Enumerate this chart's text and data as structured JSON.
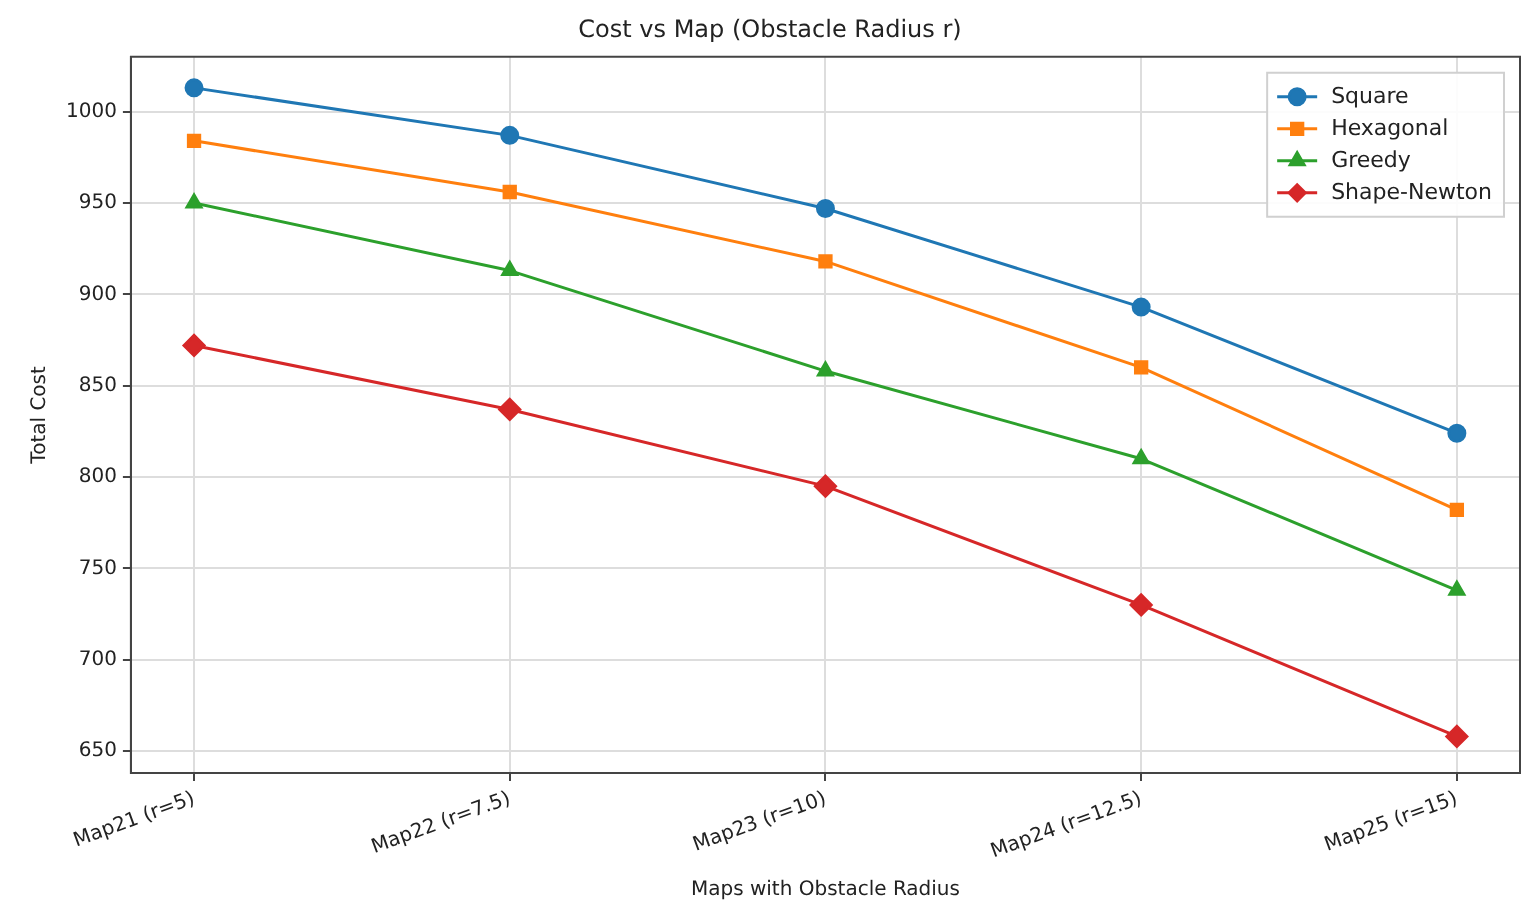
{
  "chart_data": {
    "type": "line",
    "title": "Cost vs Map (Obstacle Radius r)",
    "xlabel": "Maps with Obstacle Radius",
    "ylabel": "Total Cost",
    "categories": [
      "Map21 (r=5)",
      "Map22 (r=7.5)",
      "Map23 (r=10)",
      "Map24 (r=12.5)",
      "Map25 (r=15)"
    ],
    "series": [
      {
        "name": "Square",
        "color": "#1f77b4",
        "marker": "circle",
        "values": [
          1013,
          987,
          947,
          893,
          824
        ]
      },
      {
        "name": "Hexagonal",
        "color": "#ff7f0e",
        "marker": "square",
        "values": [
          984,
          956,
          918,
          860,
          782
        ]
      },
      {
        "name": "Greedy",
        "color": "#2ca02c",
        "marker": "triangle",
        "values": [
          950,
          913,
          858,
          810,
          738
        ]
      },
      {
        "name": "Shape-Newton",
        "color": "#d62728",
        "marker": "diamond",
        "values": [
          872,
          837,
          795,
          730,
          658
        ]
      }
    ],
    "ylim": [
      638,
      1030
    ],
    "yticks": [
      650,
      700,
      750,
      800,
      850,
      900,
      950,
      1000
    ],
    "grid": true,
    "legend": "top right",
    "line_style": "solid"
  }
}
